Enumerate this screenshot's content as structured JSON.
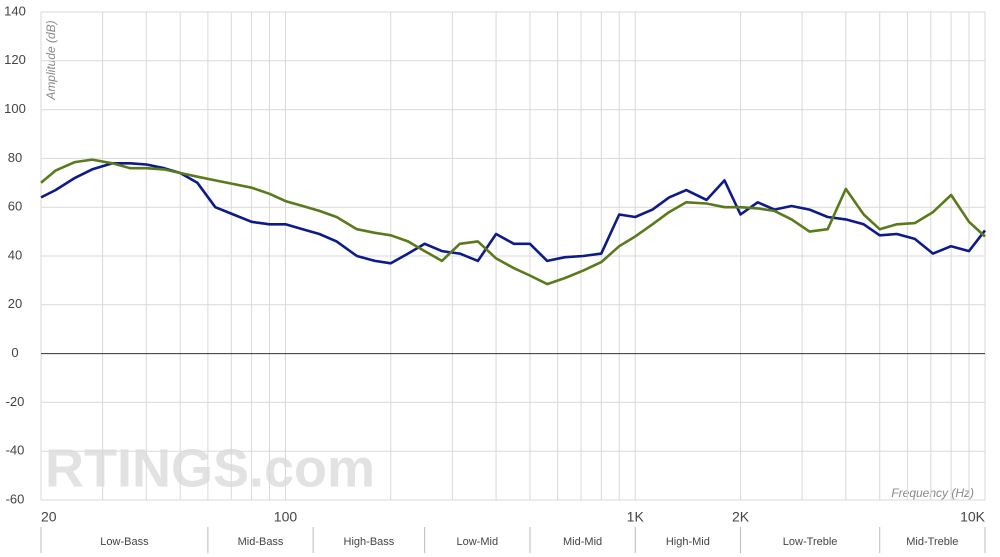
{
  "chart_data": {
    "type": "line",
    "y_label": "Amplitude (dB)",
    "x_label": "Frequency (Hz)",
    "watermark": "RTINGS.com",
    "log_x": true,
    "grid": true,
    "xlim": [
      20,
      10000
    ],
    "ylim": [
      -60,
      140
    ],
    "yticks": [
      -60,
      -40,
      -20,
      0,
      20,
      40,
      60,
      80,
      100,
      120,
      140
    ],
    "xticks": [
      20,
      100,
      {
        "value": 1000,
        "label": "1K"
      },
      {
        "value": 2000,
        "label": "2K"
      },
      {
        "value": 10000,
        "label": "10K"
      }
    ],
    "xgrid": [
      20,
      30,
      40,
      50,
      60,
      70,
      80,
      90,
      100,
      200,
      300,
      400,
      500,
      600,
      700,
      800,
      900,
      1000,
      2000,
      3000,
      4000,
      5000,
      6000,
      7000,
      8000,
      9000,
      10000
    ],
    "regions": [
      {
        "label": "Low-Bass",
        "range": [
          20,
          60
        ]
      },
      {
        "label": "Mid-Bass",
        "range": [
          60,
          120
        ]
      },
      {
        "label": "High-Bass",
        "range": [
          120,
          250
        ]
      },
      {
        "label": "Low-Mid",
        "range": [
          250,
          500
        ]
      },
      {
        "label": "Mid-Mid",
        "range": [
          500,
          1000
        ]
      },
      {
        "label": "High-Mid",
        "range": [
          1000,
          2000
        ]
      },
      {
        "label": "Low-Treble",
        "range": [
          2000,
          5000
        ]
      },
      {
        "label": "Mid-Treble",
        "range": [
          5000,
          10000
        ]
      }
    ],
    "x": [
      20,
      22,
      25,
      28,
      32,
      36,
      40,
      45,
      50,
      56,
      63,
      71,
      80,
      90,
      100,
      112,
      125,
      140,
      160,
      180,
      200,
      224,
      250,
      280,
      315,
      355,
      400,
      450,
      500,
      560,
      630,
      710,
      800,
      900,
      1000,
      1120,
      1250,
      1400,
      1600,
      1800,
      2000,
      2240,
      2500,
      2800,
      3150,
      3550,
      4000,
      4500,
      5000,
      5600,
      6300,
      7100,
      8000,
      9000,
      10000
    ],
    "series": [
      {
        "color": "#0d1a8a",
        "values": [
          64,
          67,
          72,
          75.5,
          78,
          78,
          77.5,
          76,
          74,
          70,
          60,
          57,
          54,
          53,
          53,
          51,
          49,
          46,
          40,
          38,
          37,
          41,
          45,
          42,
          41,
          38,
          49,
          45,
          45,
          38,
          39.5,
          40,
          41,
          57,
          56,
          59,
          64,
          67,
          63,
          71,
          57,
          62,
          59,
          60.5,
          59,
          56,
          55,
          53,
          48.5,
          49,
          47,
          41,
          44,
          42,
          50.5
        ]
      },
      {
        "color": "#5a7a1c",
        "values": [
          70,
          75,
          78.5,
          79.5,
          78,
          76,
          76,
          75.5,
          74,
          72.5,
          71,
          69.5,
          68,
          65.5,
          62.5,
          60.5,
          58.5,
          56,
          51,
          49.5,
          48.5,
          46,
          42,
          38,
          45,
          46,
          39,
          35,
          32,
          28.5,
          31,
          34,
          37.5,
          44,
          48,
          53,
          58,
          62,
          61.5,
          60,
          60,
          59.5,
          58.5,
          55,
          50,
          51,
          67.5,
          57,
          51,
          53,
          53.5,
          58,
          65,
          54,
          48
        ]
      }
    ]
  }
}
